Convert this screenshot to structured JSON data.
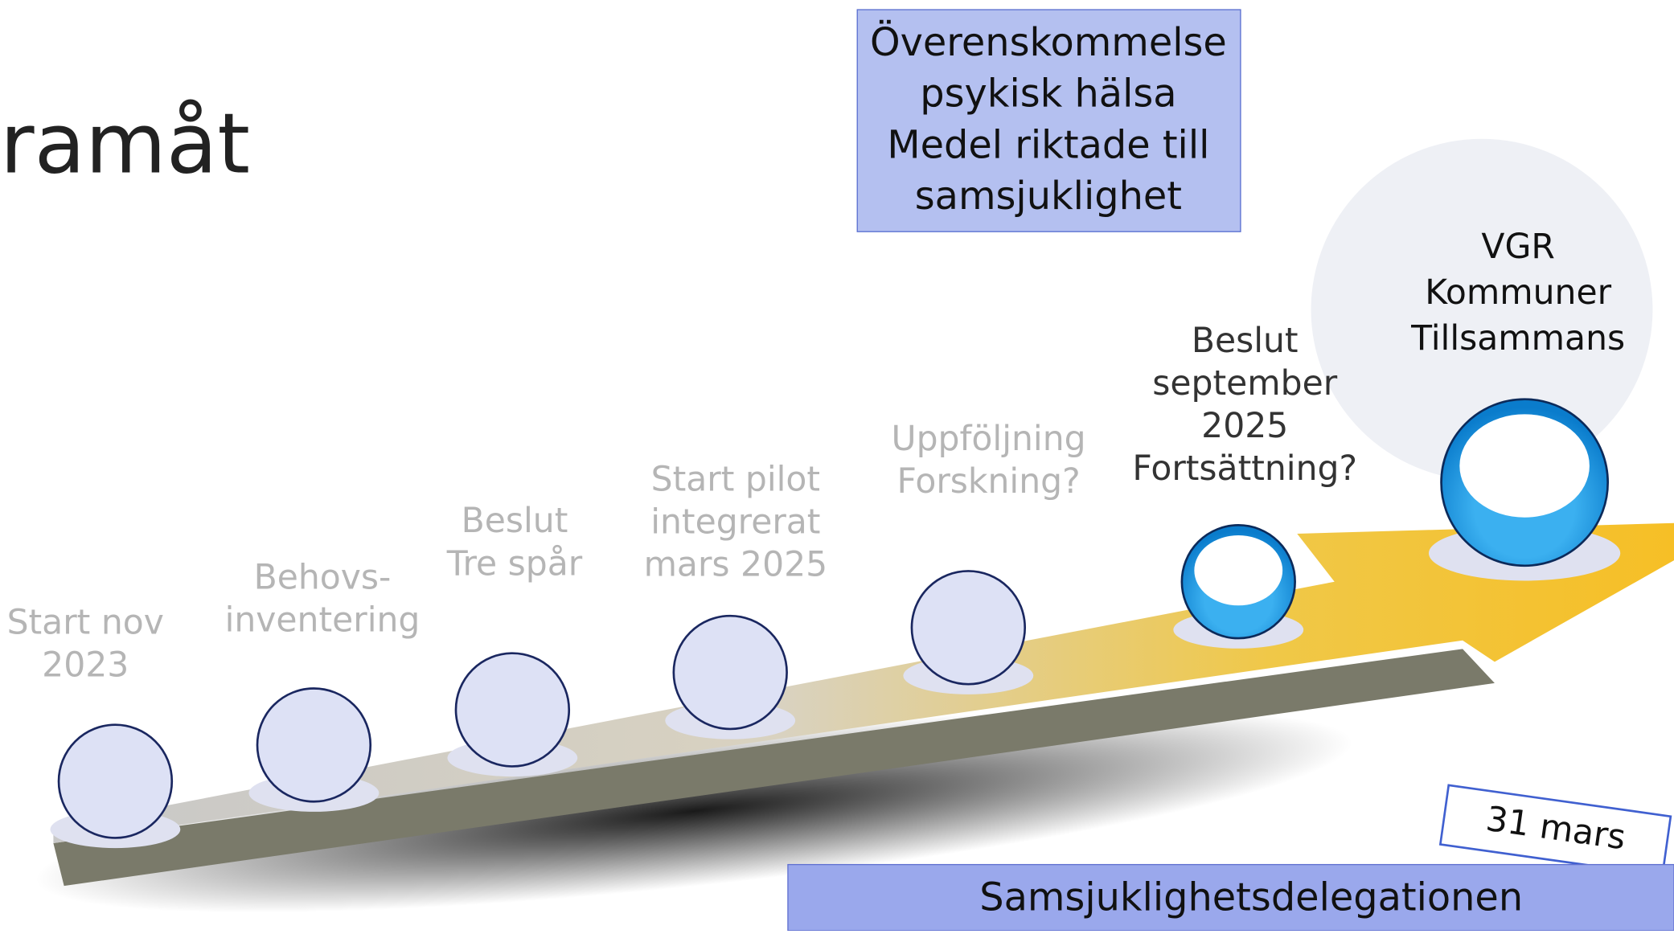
{
  "title": "ramåt",
  "top_box": {
    "lines": [
      "Överenskommelse",
      "psykisk hälsa",
      "Medel riktade till",
      "samsjuklighet"
    ]
  },
  "milestones": [
    {
      "lines": [
        "Start nov",
        "2023"
      ]
    },
    {
      "lines": [
        "Behovs-",
        "inventering"
      ]
    },
    {
      "lines": [
        "Beslut",
        "Tre spår"
      ]
    },
    {
      "lines": [
        "Start pilot",
        "integrerat",
        "mars 2025"
      ]
    },
    {
      "lines": [
        "Uppföljning",
        "Forskning?"
      ]
    },
    {
      "lines": [
        "Beslut",
        "september",
        "2025",
        "Fortsättning?"
      ]
    },
    {
      "lines": [
        "VGR",
        "Kommuner",
        "Tillsammans"
      ]
    }
  ],
  "date_tag": "31 mars",
  "footer": "Samsjuklighetsdelegationen"
}
